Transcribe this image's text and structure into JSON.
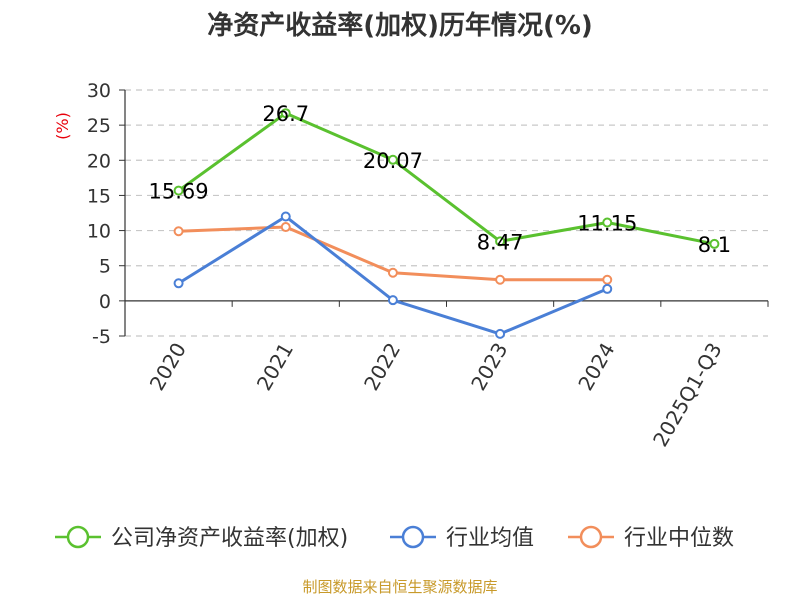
{
  "chart_data": {
    "type": "line",
    "title": "净资产收益率(加权)历年情况(%)",
    "ylabel": "(%)",
    "categories": [
      "2020",
      "2021",
      "2022",
      "2023",
      "2024",
      "2025Q1-Q3"
    ],
    "ylim": [
      -5,
      30
    ],
    "yticks": [
      30,
      25,
      20,
      15,
      10,
      5,
      0,
      -5
    ],
    "grid": true,
    "legend_position": "bottom",
    "series": [
      {
        "name": "公司净资产收益率(加权)",
        "color": "#5ac12f",
        "values": [
          15.69,
          26.7,
          20.07,
          8.47,
          11.15,
          8.1
        ],
        "labels": [
          "15.69",
          "26.7",
          "20.07",
          "8.47",
          "11.15",
          "8.1"
        ]
      },
      {
        "name": "行业均值",
        "color": "#4a7fd6",
        "values": [
          2.5,
          12.0,
          0.1,
          -4.7,
          1.7,
          null
        ]
      },
      {
        "name": "行业中位数",
        "color": "#f28e5b",
        "values": [
          9.9,
          10.5,
          4.0,
          3.0,
          3.0,
          null
        ]
      }
    ]
  },
  "source": "制图数据来自恒生聚源数据库"
}
